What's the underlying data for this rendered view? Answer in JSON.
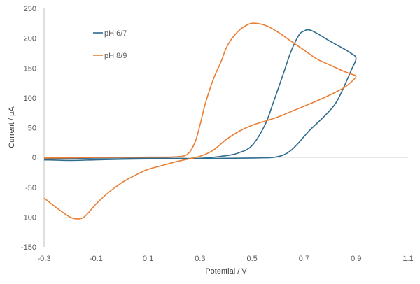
{
  "chart_data": {
    "type": "line",
    "xlabel": "Potential / V",
    "ylabel": "Current / μA",
    "xlim": [
      -0.3,
      1.1
    ],
    "ylim": [
      -150,
      250
    ],
    "x_ticks": [
      "-0.3",
      "-0.1",
      "0.1",
      "0.3",
      "0.5",
      "0.7",
      "0.9",
      "1.1"
    ],
    "y_ticks": [
      "-150",
      "-100",
      "-50",
      "0",
      "50",
      "100",
      "150",
      "200",
      "250"
    ],
    "grid": false,
    "legend_position": "top-left inside plot",
    "series": [
      {
        "name": "pH 6/7",
        "color": "#2e6b8f",
        "points": [
          [
            -0.3,
            -4
          ],
          [
            -0.2,
            -5
          ],
          [
            -0.1,
            -4
          ],
          [
            0.0,
            -3
          ],
          [
            0.1,
            -2.5
          ],
          [
            0.2,
            -2
          ],
          [
            0.3,
            -1.5
          ],
          [
            0.4,
            3
          ],
          [
            0.45,
            8
          ],
          [
            0.5,
            20
          ],
          [
            0.55,
            55
          ],
          [
            0.58,
            90
          ],
          [
            0.62,
            140
          ],
          [
            0.65,
            178
          ],
          [
            0.68,
            205
          ],
          [
            0.7,
            212
          ],
          [
            0.72,
            214
          ],
          [
            0.75,
            208
          ],
          [
            0.8,
            195
          ],
          [
            0.85,
            183
          ],
          [
            0.88,
            175
          ],
          [
            0.9,
            166
          ],
          [
            0.88,
            145
          ],
          [
            0.85,
            115
          ],
          [
            0.82,
            90
          ],
          [
            0.78,
            70
          ],
          [
            0.72,
            45
          ],
          [
            0.68,
            25
          ],
          [
            0.65,
            12
          ],
          [
            0.62,
            4
          ],
          [
            0.58,
            0
          ],
          [
            0.55,
            -0.5
          ],
          [
            0.5,
            -1
          ],
          [
            0.4,
            -1.5
          ],
          [
            0.3,
            -2
          ],
          [
            0.2,
            -1.5
          ],
          [
            0.1,
            -1
          ],
          [
            0.0,
            -1
          ],
          [
            -0.1,
            -1
          ],
          [
            -0.2,
            -1.5
          ],
          [
            -0.3,
            -2
          ]
        ]
      },
      {
        "name": "pH 8/9",
        "color": "#ed7d31",
        "points": [
          [
            -0.3,
            -1
          ],
          [
            -0.1,
            0
          ],
          [
            0.1,
            0.5
          ],
          [
            0.2,
            1
          ],
          [
            0.25,
            5
          ],
          [
            0.28,
            25
          ],
          [
            0.3,
            55
          ],
          [
            0.32,
            90
          ],
          [
            0.35,
            130
          ],
          [
            0.38,
            160
          ],
          [
            0.4,
            183
          ],
          [
            0.42,
            198
          ],
          [
            0.45,
            213
          ],
          [
            0.48,
            222
          ],
          [
            0.5,
            225
          ],
          [
            0.53,
            224
          ],
          [
            0.56,
            220
          ],
          [
            0.6,
            210
          ],
          [
            0.65,
            195
          ],
          [
            0.7,
            180
          ],
          [
            0.75,
            165
          ],
          [
            0.8,
            155
          ],
          [
            0.85,
            145
          ],
          [
            0.88,
            140
          ],
          [
            0.9,
            136
          ],
          [
            0.88,
            126
          ],
          [
            0.85,
            116
          ],
          [
            0.8,
            105
          ],
          [
            0.75,
            95
          ],
          [
            0.7,
            86
          ],
          [
            0.65,
            77
          ],
          [
            0.6,
            68
          ],
          [
            0.55,
            61
          ],
          [
            0.5,
            54
          ],
          [
            0.45,
            44
          ],
          [
            0.4,
            30
          ],
          [
            0.35,
            12
          ],
          [
            0.3,
            2
          ],
          [
            0.25,
            -3
          ],
          [
            0.2,
            -8
          ],
          [
            0.15,
            -14
          ],
          [
            0.1,
            -20
          ],
          [
            0.05,
            -30
          ],
          [
            0.0,
            -42
          ],
          [
            -0.05,
            -58
          ],
          [
            -0.1,
            -78
          ],
          [
            -0.13,
            -93
          ],
          [
            -0.15,
            -101
          ],
          [
            -0.17,
            -103
          ],
          [
            -0.2,
            -100
          ],
          [
            -0.25,
            -85
          ],
          [
            -0.3,
            -68
          ]
        ]
      }
    ]
  }
}
